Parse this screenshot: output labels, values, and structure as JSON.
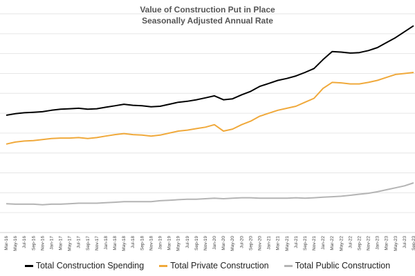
{
  "chart_data": {
    "type": "line",
    "title": "Value of Construction Put in Place",
    "subtitle": "Seasonally Adjusted Annual Rate",
    "xlabel": "",
    "ylabel": "",
    "ylim": [
      0,
      2200
    ],
    "grid": true,
    "legend_position": "bottom",
    "x_tick_labels": [
      "Mar-16",
      "May-16",
      "Jul-16",
      "Sep-16",
      "Nov-16",
      "Jan-17",
      "Mar-17",
      "May-17",
      "Jul-17",
      "Sep-17",
      "Nov-17",
      "Jan-18",
      "Mar-18",
      "May-18",
      "Jul-18",
      "Sep-18",
      "Nov-18",
      "Jan-19",
      "Mar-19",
      "May-19",
      "Jul-19",
      "Sep-19",
      "Nov-19",
      "Jan-20",
      "Mar-20",
      "May-20",
      "Jul-20",
      "Sep-20",
      "Nov-20",
      "Jan-21",
      "Mar-21",
      "May-21",
      "Jul-21",
      "Sep-21",
      "Nov-21",
      "Jan-22",
      "Mar-22",
      "May-22",
      "Jul-22",
      "Sep-22",
      "Nov-22",
      "Jan-23",
      "Mar-23",
      "May-23",
      "Jul-23",
      "Sep-23"
    ],
    "series": [
      {
        "name": "Total Construction Spending",
        "color": "#000000",
        "values": [
          1180,
          1195,
          1205,
          1210,
          1215,
          1230,
          1240,
          1245,
          1250,
          1240,
          1245,
          1260,
          1275,
          1290,
          1280,
          1275,
          1265,
          1270,
          1290,
          1310,
          1320,
          1335,
          1355,
          1375,
          1335,
          1345,
          1385,
          1420,
          1470,
          1500,
          1530,
          1550,
          1575,
          1610,
          1650,
          1740,
          1820,
          1815,
          1805,
          1810,
          1830,
          1860,
          1910,
          1960,
          2020,
          2080
        ]
      },
      {
        "name": "Total Private Construction",
        "color": "#f0a93b",
        "values": [
          890,
          910,
          920,
          925,
          935,
          945,
          950,
          950,
          955,
          945,
          955,
          970,
          985,
          995,
          985,
          980,
          970,
          980,
          1000,
          1020,
          1030,
          1045,
          1060,
          1085,
          1020,
          1040,
          1085,
          1120,
          1170,
          1200,
          1230,
          1250,
          1270,
          1310,
          1350,
          1450,
          1510,
          1505,
          1495,
          1495,
          1510,
          1530,
          1560,
          1590,
          1600,
          1610
        ]
      },
      {
        "name": "Total Public Construction",
        "color": "#b4b4b4",
        "values": [
          290,
          285,
          285,
          285,
          280,
          285,
          285,
          290,
          295,
          295,
          295,
          300,
          305,
          310,
          310,
          310,
          310,
          320,
          325,
          330,
          335,
          335,
          340,
          345,
          340,
          345,
          350,
          350,
          345,
          345,
          345,
          345,
          350,
          345,
          350,
          355,
          360,
          365,
          375,
          385,
          395,
          410,
          430,
          450,
          470,
          500
        ]
      }
    ]
  }
}
